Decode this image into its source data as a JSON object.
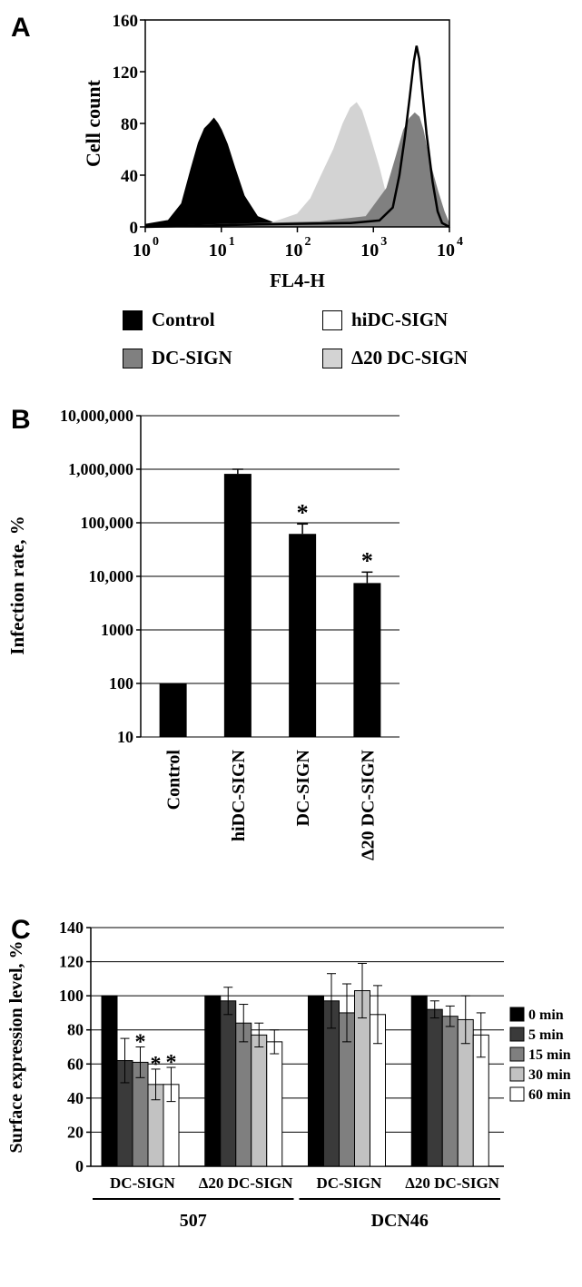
{
  "chart_data": [
    {
      "panel": "A",
      "type": "area",
      "xlabel": "FL4-H",
      "ylabel": "Cell count",
      "xscale": "log",
      "xlim": [
        1,
        10000
      ],
      "ylim": [
        0,
        160
      ],
      "xticks": [
        "10",
        "10",
        "10",
        "10",
        "10"
      ],
      "xtick_exponents": [
        "0",
        "1",
        "2",
        "3",
        "4"
      ],
      "yticks": [
        "0",
        "40",
        "80",
        "120",
        "160"
      ],
      "series": [
        {
          "name": "Control",
          "color": "#000000",
          "style": "filled",
          "points": [
            [
              1,
              2
            ],
            [
              2,
              5
            ],
            [
              3,
              18
            ],
            [
              4,
              45
            ],
            [
              5,
              65
            ],
            [
              6,
              76
            ],
            [
              7,
              80
            ],
            [
              8,
              84
            ],
            [
              9,
              80
            ],
            [
              10,
              75
            ],
            [
              12,
              64
            ],
            [
              15,
              46
            ],
            [
              20,
              24
            ],
            [
              30,
              8
            ],
            [
              50,
              3
            ],
            [
              80,
              1
            ],
            [
              200,
              0
            ],
            [
              10000,
              0
            ]
          ]
        },
        {
          "name": "Δ20 DC-SIGN",
          "color": "#d3d3d3",
          "style": "filled",
          "points": [
            [
              1,
              0
            ],
            [
              10,
              0
            ],
            [
              40,
              2
            ],
            [
              100,
              10
            ],
            [
              150,
              22
            ],
            [
              200,
              38
            ],
            [
              300,
              60
            ],
            [
              400,
              80
            ],
            [
              500,
              92
            ],
            [
              600,
              96
            ],
            [
              700,
              90
            ],
            [
              900,
              70
            ],
            [
              1200,
              45
            ],
            [
              1500,
              22
            ],
            [
              2000,
              8
            ],
            [
              3000,
              2
            ],
            [
              5000,
              0
            ],
            [
              10000,
              0
            ]
          ]
        },
        {
          "name": "DC-SIGN",
          "color": "#808080",
          "style": "filled",
          "points": [
            [
              1,
              0
            ],
            [
              10,
              2
            ],
            [
              50,
              3
            ],
            [
              200,
              4
            ],
            [
              800,
              8
            ],
            [
              1500,
              30
            ],
            [
              2000,
              55
            ],
            [
              2500,
              75
            ],
            [
              3000,
              84
            ],
            [
              3500,
              88
            ],
            [
              4000,
              85
            ],
            [
              4500,
              75
            ],
            [
              5500,
              50
            ],
            [
              7000,
              28
            ],
            [
              8500,
              12
            ],
            [
              10000,
              2
            ]
          ]
        },
        {
          "name": "hiDC-SIGN",
          "color": "#000000",
          "style": "outline",
          "points": [
            [
              1,
              0
            ],
            [
              30,
              2
            ],
            [
              500,
              3
            ],
            [
              1200,
              5
            ],
            [
              1800,
              15
            ],
            [
              2200,
              40
            ],
            [
              2600,
              70
            ],
            [
              3000,
              100
            ],
            [
              3400,
              128
            ],
            [
              3700,
              140
            ],
            [
              4000,
              130
            ],
            [
              4400,
              105
            ],
            [
              5000,
              72
            ],
            [
              6000,
              35
            ],
            [
              7000,
              12
            ],
            [
              8000,
              3
            ],
            [
              10000,
              0
            ]
          ]
        }
      ],
      "legend": [
        "Control",
        "hiDC-SIGN",
        "DC-SIGN",
        "Δ20 DC-SIGN"
      ]
    },
    {
      "panel": "B",
      "type": "bar",
      "ylabel": "Infection rate, %",
      "yscale": "log",
      "ylim": [
        10,
        10000000
      ],
      "yticks": [
        "10",
        "100",
        "1000",
        "10,000",
        "100,000",
        "1,000,000",
        "10,000,000"
      ],
      "categories": [
        "Control",
        "hiDC-SIGN",
        "DC-SIGN",
        "Δ20 DC-SIGN"
      ],
      "values": [
        100,
        820000,
        62000,
        7500
      ],
      "errors_upper": [
        100,
        1000000,
        95000,
        12000
      ],
      "significance": [
        "",
        "",
        "*",
        "*"
      ],
      "grid": true
    },
    {
      "panel": "C",
      "type": "bar",
      "ylabel": "Surface expression level, %",
      "ylim": [
        0,
        140
      ],
      "yticks": [
        "0",
        "20",
        "40",
        "60",
        "80",
        "100",
        "120",
        "140"
      ],
      "categories": [
        "DC-SIGN",
        "Δ20 DC-SIGN",
        "DC-SIGN",
        "Δ20 DC-SIGN"
      ],
      "groups": [
        "507",
        "DCN46"
      ],
      "series": [
        {
          "name": "0 min",
          "color": "#000000",
          "values": [
            100,
            100,
            100,
            100
          ],
          "errors": [
            0,
            0,
            0,
            0
          ],
          "significance": [
            "",
            "",
            "",
            ""
          ]
        },
        {
          "name": "5 min",
          "color": "#3a3a3a",
          "values": [
            62,
            97,
            97,
            92
          ],
          "errors": [
            13,
            8,
            16,
            5
          ],
          "significance": [
            "",
            "",
            "",
            ""
          ]
        },
        {
          "name": "15 min",
          "color": "#7f7f7f",
          "values": [
            61,
            84,
            90,
            88
          ],
          "errors": [
            9,
            11,
            17,
            6
          ],
          "significance": [
            "*",
            "",
            "",
            ""
          ]
        },
        {
          "name": "30 min",
          "color": "#c2c2c2",
          "values": [
            48,
            77,
            103,
            86
          ],
          "errors": [
            9,
            7,
            16,
            14
          ],
          "significance": [
            "*",
            "",
            "",
            ""
          ]
        },
        {
          "name": "60 min",
          "color": "#ffffff",
          "values": [
            48,
            73,
            89,
            77
          ],
          "errors": [
            10,
            7,
            17,
            13
          ],
          "significance": [
            "*",
            "",
            "",
            ""
          ]
        }
      ],
      "grid": true
    }
  ],
  "labels": {
    "panel_a": "A",
    "panel_b": "B",
    "panel_c": "C"
  }
}
